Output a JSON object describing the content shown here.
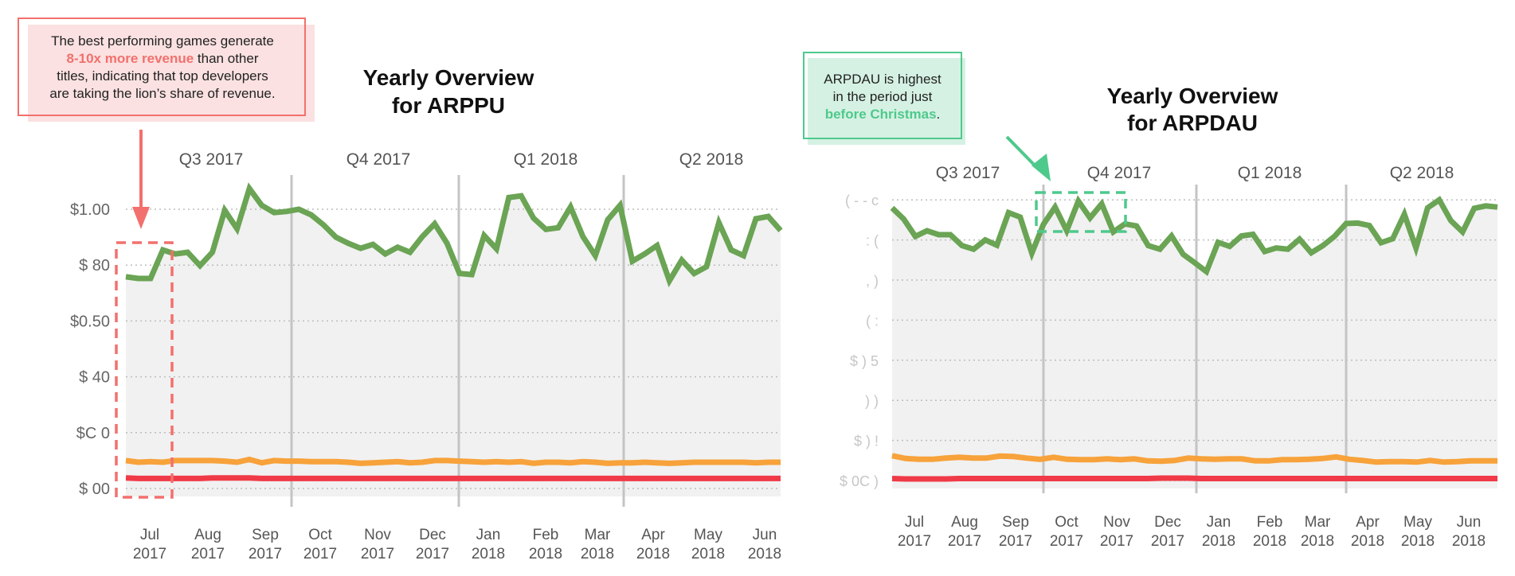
{
  "chart_data": [
    {
      "type": "line",
      "title": "Yearly Overview for ARPPU",
      "title_lines": [
        "Yearly Overview",
        "for ARPPU"
      ],
      "xlabel": "",
      "ylabel": "",
      "y_ticks": [
        "$  00",
        "$C  0",
        "$  40",
        "$0.50",
        "$  80",
        "$1.00"
      ],
      "y_ticks_note": "tick labels partially obscured in source",
      "ylim": [
        0,
        5.3
      ],
      "grid": true,
      "quarters": [
        "Q3 2017",
        "Q4 2017",
        "Q1 2018",
        "Q2 2018"
      ],
      "months": [
        {
          "m": "Jul",
          "y": "2017"
        },
        {
          "m": "Aug",
          "y": "2017"
        },
        {
          "m": "Sep",
          "y": "2017"
        },
        {
          "m": "Oct",
          "y": "2017"
        },
        {
          "m": "Nov",
          "y": "2017"
        },
        {
          "m": "Dec",
          "y": "2017"
        },
        {
          "m": "Jan",
          "y": "2018"
        },
        {
          "m": "Feb",
          "y": "2018"
        },
        {
          "m": "Mar",
          "y": "2018"
        },
        {
          "m": "Apr",
          "y": "2018"
        },
        {
          "m": "May",
          "y": "2018"
        },
        {
          "m": "Jun",
          "y": "2018"
        }
      ],
      "series": [
        {
          "name": "top",
          "color": "#6aa454",
          "values": [
            3.79,
            3.76,
            3.76,
            4.27,
            4.2,
            4.23,
            3.99,
            4.23,
            4.98,
            4.65,
            5.37,
            5.07,
            4.94,
            4.96,
            5.0,
            4.9,
            4.72,
            4.5,
            4.39,
            4.3,
            4.37,
            4.2,
            4.32,
            4.23,
            4.51,
            4.74,
            4.39,
            3.85,
            3.83,
            4.53,
            4.29,
            5.21,
            5.24,
            4.84,
            4.64,
            4.67,
            5.04,
            4.51,
            4.17,
            4.81,
            5.07,
            4.07,
            4.2,
            4.35,
            3.72,
            4.09,
            3.85,
            3.97,
            4.76,
            4.27,
            4.17,
            4.83,
            4.87,
            4.62
          ]
        },
        {
          "name": "mid",
          "color": "#f7a23b",
          "values": [
            0.5,
            0.47,
            0.48,
            0.47,
            0.5,
            0.5,
            0.5,
            0.5,
            0.49,
            0.47,
            0.52,
            0.46,
            0.5,
            0.49,
            0.49,
            0.48,
            0.48,
            0.48,
            0.47,
            0.45,
            0.46,
            0.47,
            0.48,
            0.46,
            0.47,
            0.5,
            0.5,
            0.49,
            0.48,
            0.47,
            0.48,
            0.47,
            0.48,
            0.45,
            0.47,
            0.47,
            0.46,
            0.48,
            0.47,
            0.45,
            0.46,
            0.46,
            0.47,
            0.46,
            0.45,
            0.46,
            0.47,
            0.47,
            0.47,
            0.47,
            0.47,
            0.46,
            0.47,
            0.47
          ]
        },
        {
          "name": "low",
          "color": "#f03a47",
          "values": [
            0.19,
            0.18,
            0.18,
            0.18,
            0.18,
            0.18,
            0.18,
            0.19,
            0.19,
            0.19,
            0.19,
            0.18,
            0.18,
            0.18,
            0.18,
            0.18,
            0.18,
            0.18,
            0.18,
            0.18,
            0.18,
            0.18,
            0.18,
            0.18,
            0.18,
            0.18,
            0.18,
            0.18,
            0.18,
            0.18,
            0.18,
            0.18,
            0.18,
            0.18,
            0.18,
            0.18,
            0.18,
            0.18,
            0.18,
            0.18,
            0.18,
            0.18,
            0.18,
            0.18,
            0.18,
            0.18,
            0.18,
            0.18,
            0.18,
            0.18,
            0.18,
            0.18,
            0.18,
            0.18
          ]
        }
      ],
      "annotation": {
        "text_before": "The best performing games generate ",
        "highlight": "8-10x more revenue",
        "text_after": " than other titles, indicating that top developers are taking the lion’s share of revenue.",
        "color": "#f2706d",
        "fill": "#fbe1e1",
        "target": "Jul 2017"
      }
    },
    {
      "type": "line",
      "title": "Yearly Overview for ARPDAU",
      "title_lines": [
        "Yearly Overview",
        "for ARPDAU"
      ],
      "xlabel": "",
      "ylabel": "",
      "y_ticks": [
        "$ 0C  )",
        "$ ) !",
        "  ) )",
        "$  ) 5",
        "(    :",
        ", )",
        ": (",
        "( - - c"
      ],
      "y_ticks_note": "tick labels largely obscured in source",
      "ylim": [
        0,
        7.3
      ],
      "grid": true,
      "quarters": [
        "Q3 2017",
        "Q4 2017",
        "Q1 2018",
        "Q2 2018"
      ],
      "months": [
        {
          "m": "Jul",
          "y": "2017"
        },
        {
          "m": "Aug",
          "y": "2017"
        },
        {
          "m": "Sep",
          "y": "2017"
        },
        {
          "m": "Oct",
          "y": "2017"
        },
        {
          "m": "Nov",
          "y": "2017"
        },
        {
          "m": "Dec",
          "y": "2017"
        },
        {
          "m": "Jan",
          "y": "2018"
        },
        {
          "m": "Feb",
          "y": "2018"
        },
        {
          "m": "Mar",
          "y": "2018"
        },
        {
          "m": "Apr",
          "y": "2018"
        },
        {
          "m": "May",
          "y": "2018"
        },
        {
          "m": "Jun",
          "y": "2018"
        }
      ],
      "series": [
        {
          "name": "top",
          "color": "#6aa454",
          "values": [
            6.8,
            6.52,
            6.09,
            6.23,
            6.13,
            6.13,
            5.86,
            5.77,
            6.0,
            5.87,
            6.68,
            6.57,
            5.67,
            6.39,
            6.82,
            6.23,
            6.97,
            6.55,
            6.9,
            6.2,
            6.4,
            6.35,
            5.86,
            5.77,
            6.1,
            5.64,
            5.43,
            5.21,
            5.94,
            5.84,
            6.1,
            6.14,
            5.71,
            5.8,
            5.77,
            6.02,
            5.68,
            5.86,
            6.09,
            6.41,
            6.42,
            6.36,
            5.93,
            6.03,
            6.64,
            5.8,
            6.8,
            7.0,
            6.48,
            6.2,
            6.79,
            6.85,
            6.82
          ]
        },
        {
          "name": "mid",
          "color": "#f7a23b",
          "values": [
            0.62,
            0.55,
            0.53,
            0.53,
            0.56,
            0.58,
            0.56,
            0.56,
            0.61,
            0.6,
            0.56,
            0.53,
            0.58,
            0.53,
            0.52,
            0.52,
            0.54,
            0.52,
            0.54,
            0.49,
            0.48,
            0.5,
            0.56,
            0.54,
            0.53,
            0.54,
            0.54,
            0.49,
            0.49,
            0.52,
            0.52,
            0.53,
            0.55,
            0.59,
            0.53,
            0.5,
            0.46,
            0.47,
            0.47,
            0.46,
            0.5,
            0.46,
            0.47,
            0.49,
            0.49,
            0.49
          ]
        },
        {
          "name": "low",
          "color": "#f03a47",
          "values": [
            0.05,
            0.04,
            0.04,
            0.04,
            0.04,
            0.05,
            0.05,
            0.05,
            0.05,
            0.05,
            0.05,
            0.05,
            0.05,
            0.05,
            0.05,
            0.05,
            0.05,
            0.05,
            0.05,
            0.05,
            0.06,
            0.06,
            0.06,
            0.05,
            0.05,
            0.05,
            0.05,
            0.05,
            0.05,
            0.05,
            0.05,
            0.05,
            0.05,
            0.05,
            0.05,
            0.05,
            0.05,
            0.05,
            0.05,
            0.05,
            0.05,
            0.05,
            0.05,
            0.05,
            0.05,
            0.05
          ]
        }
      ],
      "annotation": {
        "text_before": "ARPDAU is highest in the period just ",
        "highlight": "before Christmas",
        "text_after": ".",
        "color": "#4ec98c",
        "fill": "#d5f1e3",
        "target": "Oct–Nov 2017"
      }
    }
  ],
  "annotations": {
    "left": {
      "line1": "The best performing games generate",
      "highlight": "8-10x more revenue",
      "line2_rest": " than other",
      "line3": "titles, indicating that top developers",
      "line4": "are taking the lion’s share of revenue."
    },
    "right": {
      "line1": "ARPDAU is highest",
      "line2": "in the period just",
      "highlight": "before Christmas",
      "tail": "."
    }
  }
}
